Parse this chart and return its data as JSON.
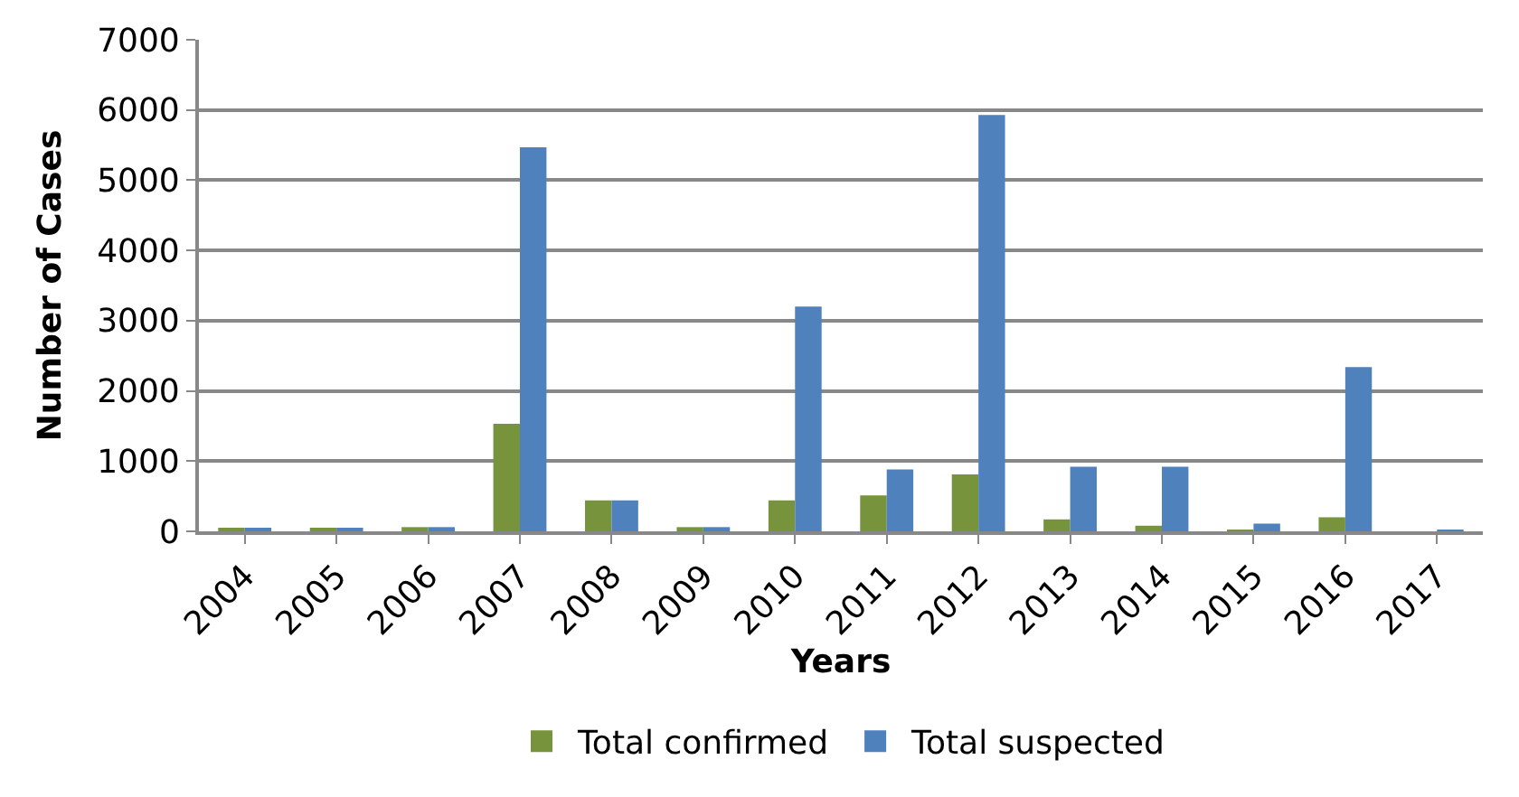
{
  "chart_data": {
    "type": "bar",
    "xlabel": "Years",
    "ylabel": "Number of Cases",
    "categories": [
      "2004",
      "2005",
      "2006",
      "2007",
      "2008",
      "2009",
      "2010",
      "2011",
      "2012",
      "2013",
      "2014",
      "2015",
      "2016",
      "2017"
    ],
    "series": [
      {
        "name": "Total confirmed",
        "color": "#77933c",
        "values": [
          30,
          30,
          60,
          1530,
          440,
          60,
          440,
          510,
          810,
          170,
          80,
          10,
          200,
          0
        ]
      },
      {
        "name": "Total suspected",
        "color": "#4f81bd",
        "values": [
          30,
          30,
          60,
          5470,
          440,
          60,
          3200,
          880,
          5930,
          920,
          920,
          110,
          2340,
          10
        ]
      }
    ],
    "ylim": [
      0,
      7000
    ],
    "yticks": [
      0,
      1000,
      2000,
      3000,
      4000,
      5000,
      6000,
      7000
    ],
    "grid": "y",
    "legend": "bottom"
  }
}
